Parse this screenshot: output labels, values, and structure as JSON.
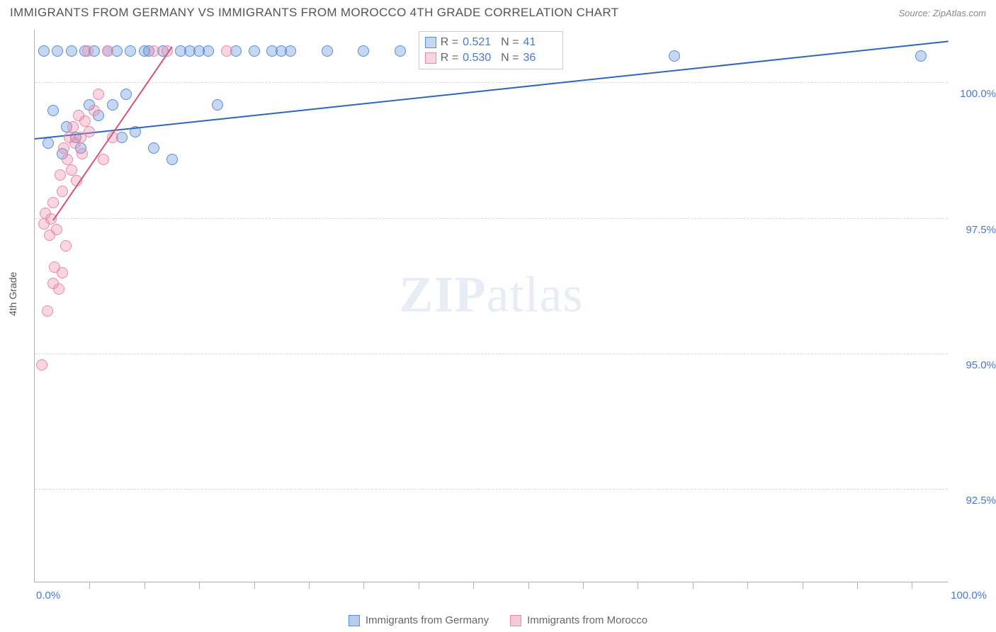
{
  "title": "IMMIGRANTS FROM GERMANY VS IMMIGRANTS FROM MOROCCO 4TH GRADE CORRELATION CHART",
  "source": "Source: ZipAtlas.com",
  "watermark_main": "ZIP",
  "watermark_sub": "atlas",
  "y_axis_title": "4th Grade",
  "chart": {
    "type": "scatter",
    "xlim": [
      0,
      100
    ],
    "ylim": [
      90.8,
      101.0
    ],
    "x_tick_min_label": "0.0%",
    "x_tick_max_label": "100.0%",
    "y_ticks": [
      92.5,
      95.0,
      97.5,
      100.0
    ],
    "y_tick_labels": [
      "92.5%",
      "95.0%",
      "97.5%",
      "100.0%"
    ],
    "x_minor_ticks": [
      6,
      12,
      18,
      24,
      30,
      36,
      42,
      48,
      54,
      60,
      66,
      72,
      78,
      84,
      90,
      96
    ],
    "grid_color": "#d8d8d8",
    "axis_color": "#b0b0b0",
    "tick_label_color": "#4a7ac7",
    "background_color": "#ffffff",
    "marker_radius": 8,
    "marker_opacity": 0.55,
    "series": [
      {
        "name": "Immigrants from Germany",
        "color": "#5b8dd6",
        "fill": "rgba(91,141,214,0.35)",
        "stroke": "#5b8dd6",
        "r_label": "R =",
        "r_value": "0.521",
        "n_label": "N =",
        "n_value": "41",
        "trend": {
          "x1": 0,
          "y1": 99.0,
          "x2": 100,
          "y2": 100.8,
          "width": 2,
          "color": "#2f66b8"
        },
        "points": [
          [
            1.0,
            100.6
          ],
          [
            1.5,
            98.9
          ],
          [
            2.0,
            99.5
          ],
          [
            2.5,
            100.6
          ],
          [
            3.0,
            98.7
          ],
          [
            3.5,
            99.2
          ],
          [
            4.0,
            100.6
          ],
          [
            4.5,
            99.0
          ],
          [
            5.0,
            98.8
          ],
          [
            5.5,
            100.6
          ],
          [
            6.0,
            99.6
          ],
          [
            6.5,
            100.6
          ],
          [
            7.0,
            99.4
          ],
          [
            8.0,
            100.6
          ],
          [
            8.5,
            99.6
          ],
          [
            9.0,
            100.6
          ],
          [
            9.5,
            99.0
          ],
          [
            10.0,
            99.8
          ],
          [
            10.5,
            100.6
          ],
          [
            11.0,
            99.1
          ],
          [
            12.0,
            100.6
          ],
          [
            12.5,
            100.6
          ],
          [
            13.0,
            98.8
          ],
          [
            14.0,
            100.6
          ],
          [
            15.0,
            98.6
          ],
          [
            16.0,
            100.6
          ],
          [
            17.0,
            100.6
          ],
          [
            18.0,
            100.6
          ],
          [
            19.0,
            100.6
          ],
          [
            20.0,
            99.6
          ],
          [
            22.0,
            100.6
          ],
          [
            24.0,
            100.6
          ],
          [
            26.0,
            100.6
          ],
          [
            27.0,
            100.6
          ],
          [
            28.0,
            100.6
          ],
          [
            32.0,
            100.6
          ],
          [
            36.0,
            100.6
          ],
          [
            40.0,
            100.6
          ],
          [
            44.0,
            100.6
          ],
          [
            70.0,
            100.5
          ],
          [
            97.0,
            100.5
          ]
        ]
      },
      {
        "name": "Immigrants from Morocco",
        "color": "#e88aa8",
        "fill": "rgba(232,138,168,0.35)",
        "stroke": "#e88aa8",
        "r_label": "R =",
        "r_value": "0.530",
        "n_label": "N =",
        "n_value": "36",
        "trend": {
          "x1": 2,
          "y1": 97.5,
          "x2": 15,
          "y2": 100.7,
          "width": 2,
          "color": "#d6527e"
        },
        "points": [
          [
            0.8,
            94.8
          ],
          [
            1.0,
            97.4
          ],
          [
            1.2,
            97.6
          ],
          [
            1.4,
            95.8
          ],
          [
            1.6,
            97.2
          ],
          [
            1.8,
            97.5
          ],
          [
            2.0,
            96.3
          ],
          [
            2.0,
            97.8
          ],
          [
            2.2,
            96.6
          ],
          [
            2.4,
            97.3
          ],
          [
            2.6,
            96.2
          ],
          [
            2.8,
            98.3
          ],
          [
            3.0,
            98.0
          ],
          [
            3.0,
            96.5
          ],
          [
            3.2,
            98.8
          ],
          [
            3.4,
            97.0
          ],
          [
            3.6,
            98.6
          ],
          [
            3.8,
            99.0
          ],
          [
            4.0,
            98.4
          ],
          [
            4.2,
            99.2
          ],
          [
            4.4,
            98.9
          ],
          [
            4.6,
            98.2
          ],
          [
            4.8,
            99.4
          ],
          [
            5.0,
            99.0
          ],
          [
            5.2,
            98.7
          ],
          [
            5.5,
            99.3
          ],
          [
            5.8,
            100.6
          ],
          [
            6.0,
            99.1
          ],
          [
            6.5,
            99.5
          ],
          [
            7.0,
            99.8
          ],
          [
            7.5,
            98.6
          ],
          [
            8.0,
            100.6
          ],
          [
            8.5,
            99.0
          ],
          [
            13.0,
            100.6
          ],
          [
            14.5,
            100.6
          ],
          [
            21.0,
            100.6
          ]
        ]
      }
    ]
  },
  "legend": {
    "items": [
      {
        "label": "Immigrants from Germany",
        "fill": "rgba(91,141,214,0.45)",
        "stroke": "#5b8dd6"
      },
      {
        "label": "Immigrants from Morocco",
        "fill": "rgba(232,138,168,0.45)",
        "stroke": "#e88aa8"
      }
    ]
  }
}
